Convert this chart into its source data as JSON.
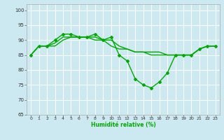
{
  "xlabel": "Humidité relative (%)",
  "bg_color": "#cce8f0",
  "grid_color": "#ffffff",
  "line_color": "#00aa00",
  "xlim": [
    -0.5,
    23.5
  ],
  "ylim": [
    65,
    102
  ],
  "yticks": [
    65,
    70,
    75,
    80,
    85,
    90,
    95,
    100
  ],
  "xticks": [
    0,
    1,
    2,
    3,
    4,
    5,
    6,
    7,
    8,
    9,
    10,
    11,
    12,
    13,
    14,
    15,
    16,
    17,
    18,
    19,
    20,
    21,
    22,
    23
  ],
  "line1_x": [
    0,
    1,
    2,
    3,
    4,
    5,
    6,
    7,
    8,
    9,
    10,
    11,
    12,
    13,
    14,
    15,
    16,
    17,
    18,
    19,
    20,
    21,
    22,
    23
  ],
  "line1_y": [
    85,
    88,
    88,
    90,
    92,
    92,
    91,
    91,
    92,
    90,
    91,
    85,
    83,
    77,
    75,
    74,
    76,
    79,
    85,
    85,
    85,
    87,
    88,
    88
  ],
  "line2_x": [
    0,
    1,
    2,
    3,
    4,
    5,
    6,
    7,
    8,
    9,
    10,
    11,
    12,
    13,
    14,
    15,
    16,
    17,
    18,
    19,
    20,
    21,
    22,
    23
  ],
  "line2_y": [
    85,
    88,
    88,
    89,
    91,
    91,
    91,
    91,
    91,
    90,
    90,
    88,
    87,
    86,
    86,
    86,
    86,
    85,
    85,
    85,
    85,
    87,
    88,
    88
  ],
  "line3_x": [
    0,
    1,
    2,
    3,
    4,
    5,
    6,
    7,
    8,
    9,
    10,
    11,
    12,
    13,
    14,
    15,
    16,
    17,
    18,
    19,
    20,
    21,
    22,
    23
  ],
  "line3_y": [
    85,
    88,
    88,
    88,
    90,
    91,
    91,
    91,
    90,
    90,
    88,
    87,
    87,
    86,
    86,
    85,
    85,
    85,
    85,
    85,
    85,
    87,
    88,
    88
  ]
}
